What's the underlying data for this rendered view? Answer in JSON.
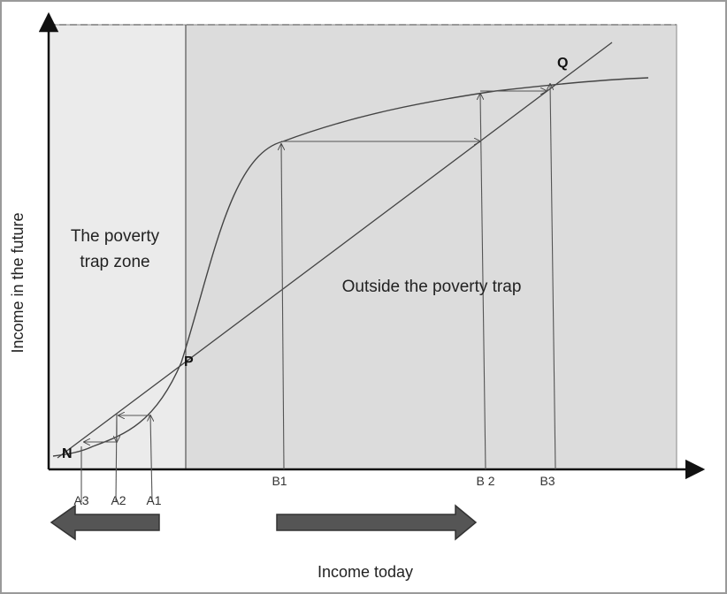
{
  "axes": {
    "x_title": "Income today",
    "y_title": "Income in the future"
  },
  "zones": {
    "trap_line1": "The poverty",
    "trap_line2": "trap zone",
    "outside": "Outside the poverty trap"
  },
  "points": {
    "N": "N",
    "P": "P",
    "Q": "Q"
  },
  "ticks": {
    "A3": "A3",
    "A2": "A2",
    "A1": "A1",
    "B1": "B1",
    "B2": "B 2",
    "B3": "B3"
  },
  "colors": {
    "trap_zone_fill": "#ebebeb",
    "outside_zone_fill": "#dcdcdc",
    "frame": "#555555",
    "curve": "#444444",
    "big_arrow_fill": "#555555"
  },
  "icons": {
    "left_arrow": "arrow-left-icon",
    "right_arrow": "arrow-right-icon"
  }
}
